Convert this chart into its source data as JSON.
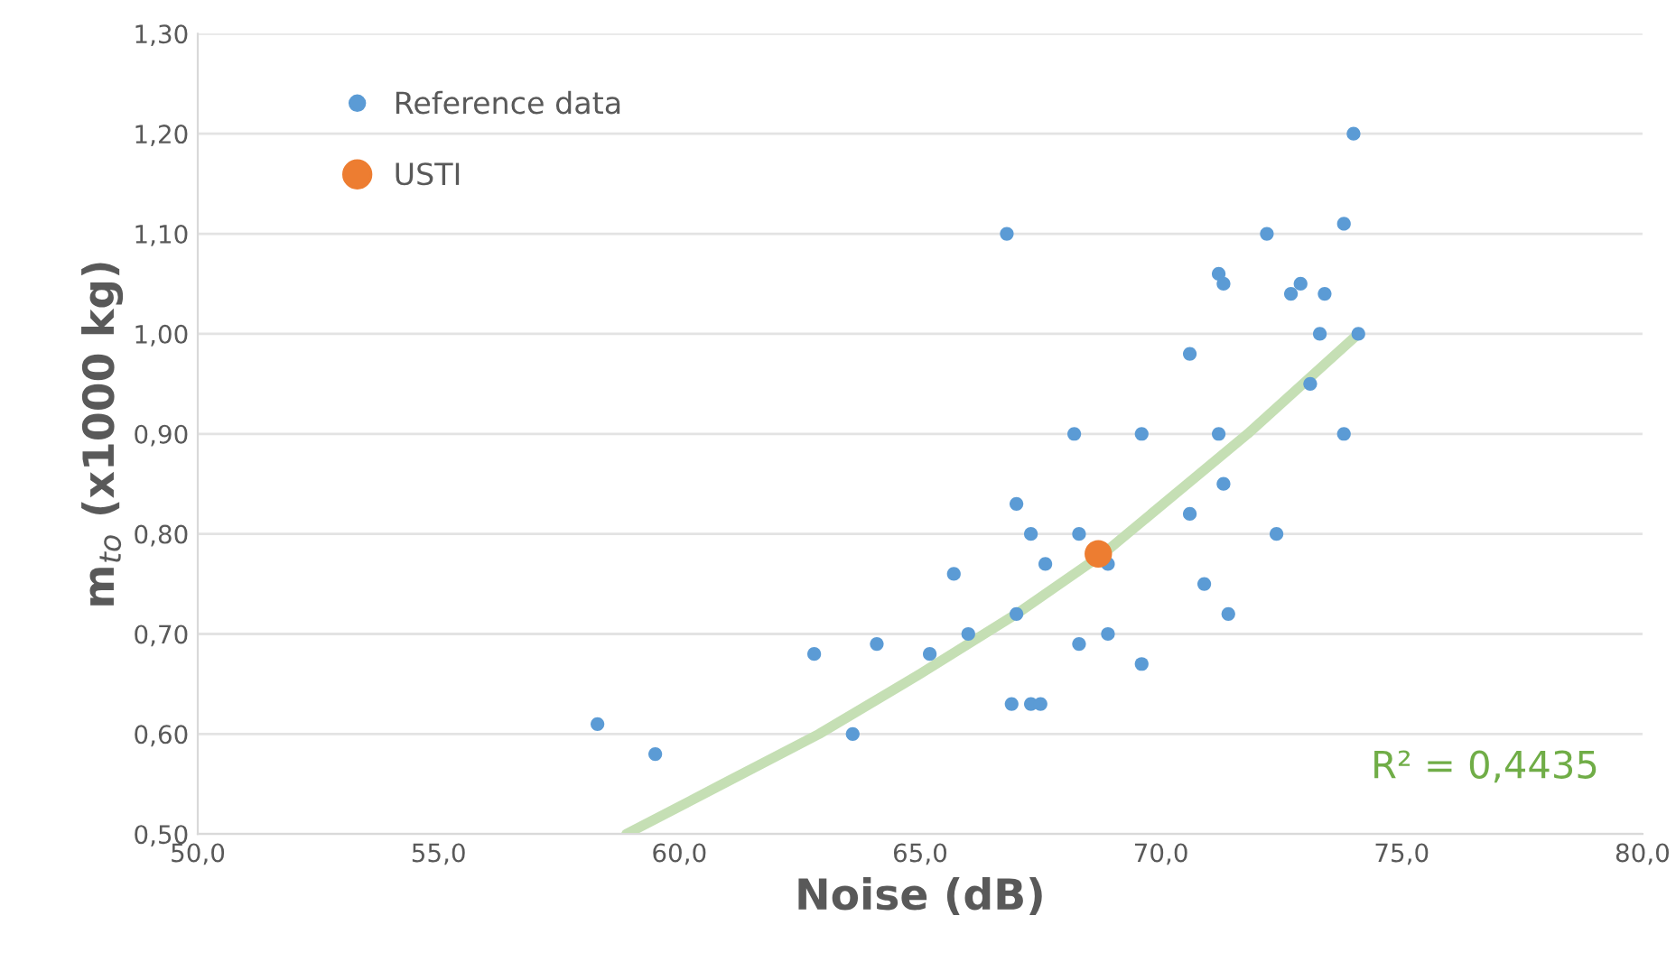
{
  "chart_data": {
    "type": "scatter",
    "xlabel": "Noise (dB)",
    "ylabel": "m$_{to}$ (x1000 kg)",
    "xlim": [
      50,
      80
    ],
    "ylim": [
      0.5,
      1.3
    ],
    "xticks": [
      {
        "value": 50,
        "label": "50,0"
      },
      {
        "value": 55,
        "label": "55,0"
      },
      {
        "value": 60,
        "label": "60,0"
      },
      {
        "value": 65,
        "label": "65,0"
      },
      {
        "value": 70,
        "label": "70,0"
      },
      {
        "value": 75,
        "label": "75,0"
      },
      {
        "value": 80,
        "label": "80,0"
      }
    ],
    "yticks": [
      {
        "value": 0.5,
        "label": "0,50"
      },
      {
        "value": 0.6,
        "label": "0,60"
      },
      {
        "value": 0.7,
        "label": "0,70"
      },
      {
        "value": 0.8,
        "label": "0,80"
      },
      {
        "value": 0.9,
        "label": "0,90"
      },
      {
        "value": 1.0,
        "label": "1,00"
      },
      {
        "value": 1.1,
        "label": "1,10"
      },
      {
        "value": 1.2,
        "label": "1,20"
      },
      {
        "value": 1.3,
        "label": "1,30"
      }
    ],
    "grid": "y",
    "legend": "top left",
    "annotations": [
      "R² = 0,4435"
    ],
    "series": [
      {
        "type": "line",
        "color": "#c5dfb4",
        "x": [
          58.9,
          60.9,
          62.9,
          65.0,
          67.0,
          68.8,
          71.8,
          74.1
        ],
        "values": [
          0.5,
          0.55,
          0.6,
          0.66,
          0.72,
          0.78,
          0.9,
          1.0
        ]
      },
      {
        "name": "Reference data",
        "color": "#5b9bd5",
        "marker": "circle",
        "x": [
          58.3,
          59.5,
          62.8,
          64.1,
          63.6,
          65.2,
          65.7,
          66.0,
          66.8,
          67.0,
          67.0,
          66.9,
          67.3,
          67.5,
          67.3,
          67.6,
          68.2,
          68.3,
          68.3,
          68.9,
          68.9,
          69.6,
          69.6,
          70.6,
          70.6,
          70.9,
          71.2,
          71.2,
          71.3,
          71.3,
          71.4,
          72.2,
          72.4,
          72.7,
          72.9,
          73.1,
          73.3,
          73.4,
          73.8,
          73.8,
          74.0,
          74.1
        ],
        "values": [
          0.61,
          0.58,
          0.68,
          0.69,
          0.6,
          0.68,
          0.76,
          0.7,
          1.1,
          0.83,
          0.72,
          0.63,
          0.63,
          0.63,
          0.8,
          0.77,
          0.9,
          0.8,
          0.69,
          0.77,
          0.7,
          0.67,
          0.9,
          0.98,
          0.82,
          0.75,
          1.06,
          0.9,
          1.05,
          0.85,
          0.72,
          1.1,
          0.8,
          1.04,
          1.05,
          0.95,
          1.0,
          1.04,
          1.11,
          0.9,
          1.2,
          1.0
        ]
      },
      {
        "name": "USTI",
        "color": "#ed7d31",
        "marker": "circle",
        "x": [
          68.7
        ],
        "values": [
          0.78
        ]
      }
    ]
  }
}
